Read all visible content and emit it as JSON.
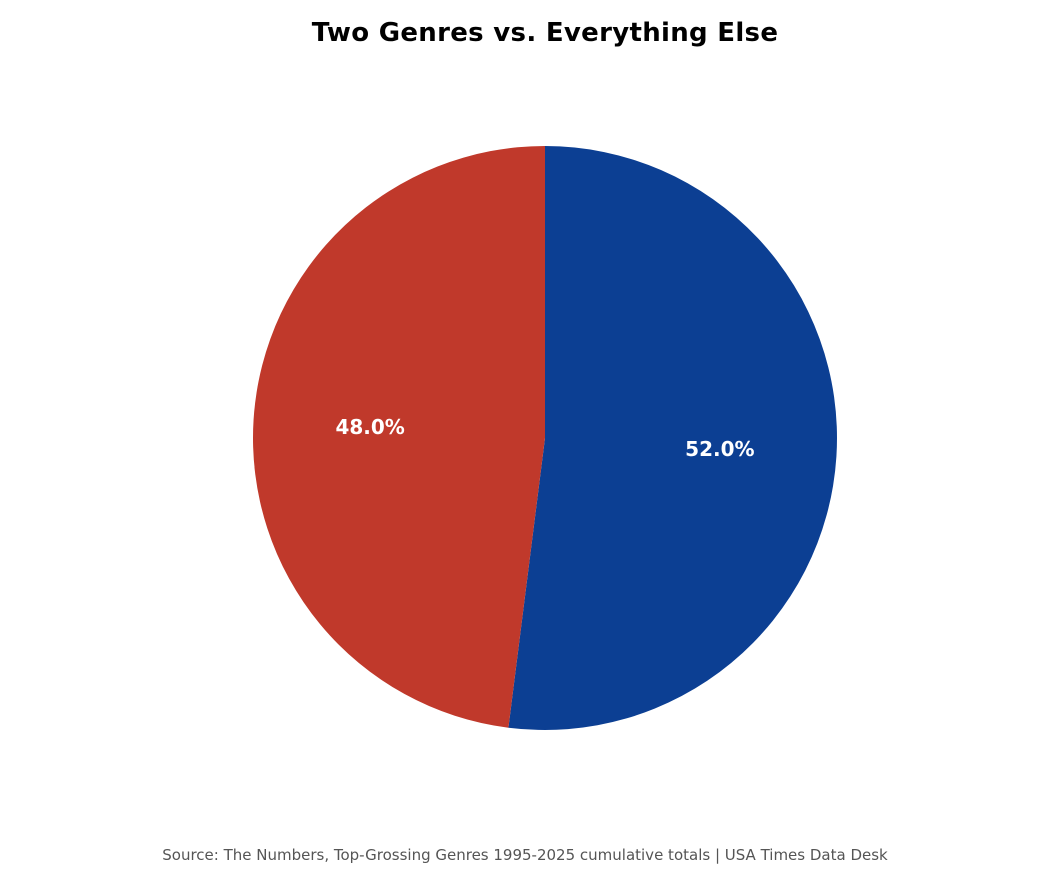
{
  "chart_data": {
    "type": "pie",
    "title": "Two Genres vs. Everything Else",
    "slices": [
      {
        "value": 52.0,
        "label": "52.0%",
        "color": "#0c3f93"
      },
      {
        "value": 48.0,
        "label": "48.0%",
        "color": "#c0392b"
      }
    ],
    "start_angle_deg": 90,
    "direction": "clockwise",
    "source": "Source: The Numbers, Top-Grossing Genres 1995-2025 cumulative totals | USA Times Data Desk"
  }
}
